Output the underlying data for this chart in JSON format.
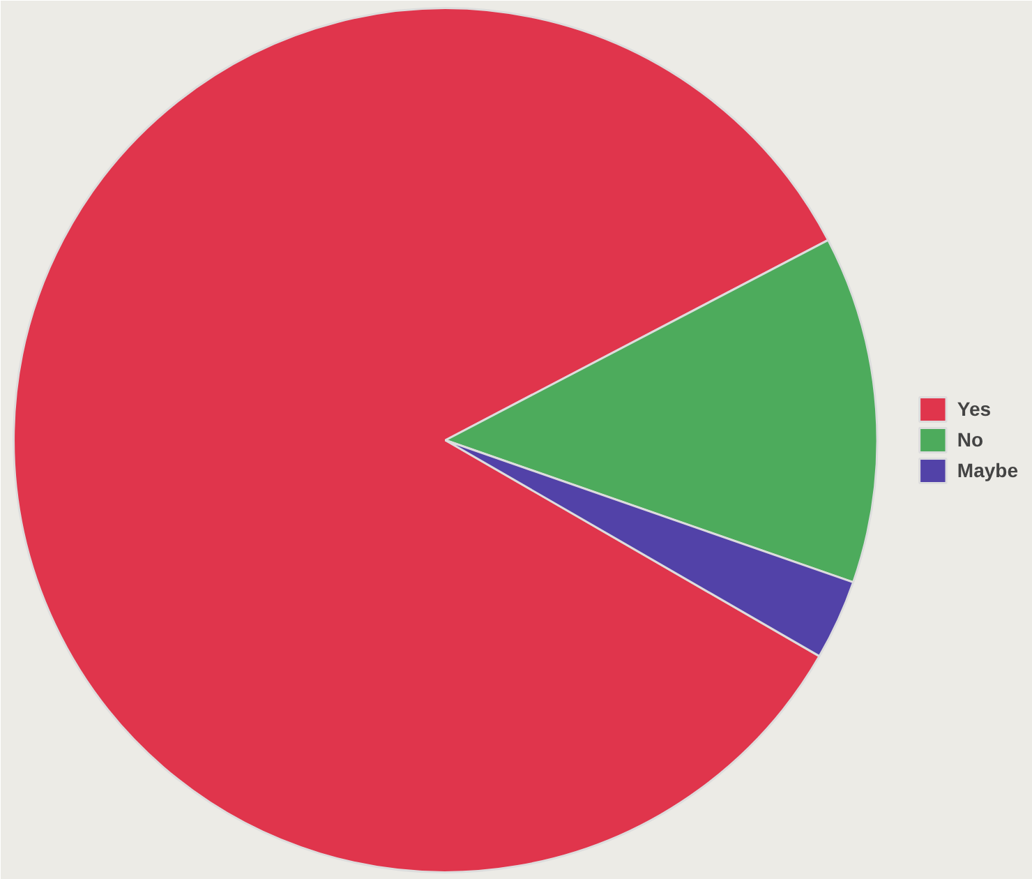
{
  "chart_data": {
    "type": "pie",
    "categories": [
      "Yes",
      "No",
      "Maybe"
    ],
    "values": [
      84,
      13,
      3
    ],
    "colors": [
      "#e0354c",
      "#4dab5c",
      "#5242a8"
    ],
    "legend": "right"
  }
}
